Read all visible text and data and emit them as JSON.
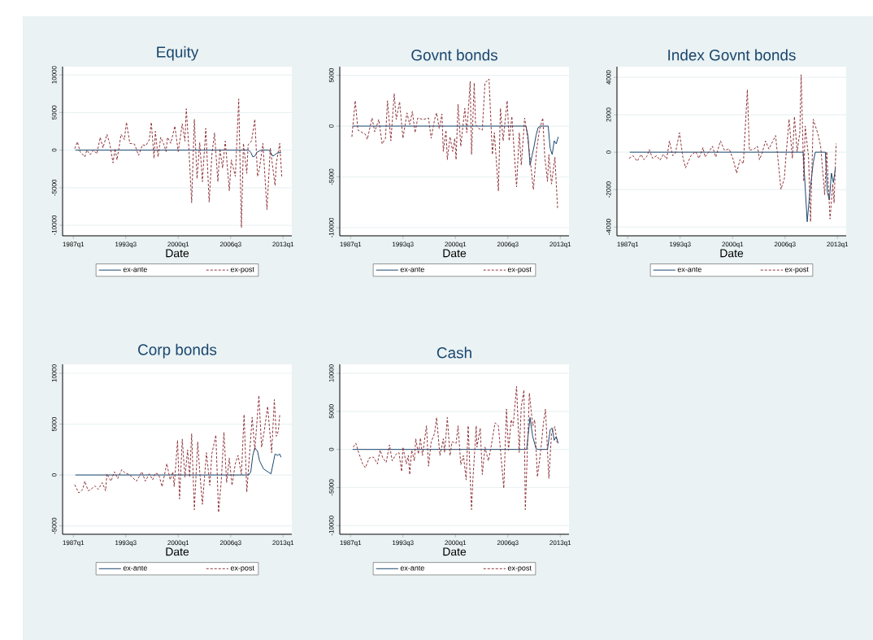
{
  "chart_data": [
    {
      "type": "line",
      "title": "Equity",
      "xlabel": "Date",
      "xlim": [
        "1985-09",
        "2014-02"
      ],
      "xticks": [
        {
          "value": "1987-01",
          "label": "1987q1"
        },
        {
          "value": "1993-07",
          "label": "1993q3"
        },
        {
          "value": "2000-01",
          "label": "2000q1"
        },
        {
          "value": "2006-07",
          "label": "2006q3"
        },
        {
          "value": "2013-01",
          "label": "2013q1"
        }
      ],
      "ylim": [
        -11400,
        11100
      ],
      "yticks": [
        -10000,
        -5000,
        0,
        5000,
        10000
      ],
      "grid": "y",
      "legend": "bottom",
      "series": [
        {
          "name": "ex-ante",
          "color": "#1a476f",
          "line_style": "solid",
          "x": [
            "1987-04",
            "2008-10",
            "2009-01",
            "2009-04",
            "2009-07",
            "2009-10",
            "2010-04",
            "2011-04",
            "2011-10",
            "2012-01",
            "2012-04",
            "2012-10"
          ],
          "values": [
            0,
            0,
            -300,
            -900,
            -800,
            -300,
            0,
            0,
            -800,
            -600,
            -400,
            -300
          ]
        },
        {
          "name": "ex-post",
          "color": "#90353b",
          "line_style": "dashed",
          "x": [
            "1987-03",
            "1987-07",
            "1987-11",
            "1988-06",
            "1988-09",
            "1989-02",
            "1989-07",
            "1989-12",
            "1990-05",
            "1990-09",
            "1991-03",
            "1991-07",
            "1991-12",
            "1992-03",
            "1992-06",
            "1992-12",
            "1993-05",
            "1993-08",
            "1994-01",
            "1994-08",
            "1995-02",
            "1995-08",
            "1996-01",
            "1996-06",
            "1996-09",
            "1997-01",
            "1997-03",
            "1997-07",
            "1997-11",
            "1998-03",
            "1998-07",
            "1998-09",
            "1999-02",
            "1999-08",
            "2000-01",
            "2000-07",
            "2000-11",
            "2001-01",
            "2001-05",
            "2001-09",
            "2002-01",
            "2002-05",
            "2002-09",
            "2003-01",
            "2003-06",
            "2003-11",
            "2004-03",
            "2004-07",
            "2004-12",
            "2005-03",
            "2005-07",
            "2005-11",
            "2006-05",
            "2006-08",
            "2007-02",
            "2007-07",
            "2007-11",
            "2008-02",
            "2008-07",
            "2008-09",
            "2009-02",
            "2009-07",
            "2009-11",
            "2010-02",
            "2010-07",
            "2011-01",
            "2011-06",
            "2012-01",
            "2012-03",
            "2012-08",
            "2012-11"
          ],
          "values": [
            200,
            1100,
            -200,
            -900,
            0,
            -600,
            0,
            -500,
            1700,
            300,
            2100,
            900,
            -1700,
            200,
            -1300,
            2100,
            1400,
            3700,
            900,
            800,
            -700,
            700,
            600,
            1400,
            3700,
            -1100,
            2500,
            -900,
            1700,
            900,
            -200,
            1700,
            900,
            3200,
            -200,
            3500,
            1200,
            5500,
            0,
            -7000,
            4100,
            -3800,
            1000,
            -4200,
            2900,
            -6900,
            -700,
            2300,
            -4200,
            200,
            -2400,
            1200,
            -5400,
            -1300,
            -3500,
            6800,
            -10300,
            900,
            -3100,
            700,
            1200,
            4100,
            -3500,
            -2400,
            900,
            -7900,
            300,
            -4700,
            -1700,
            900,
            -3500
          ]
        }
      ]
    },
    {
      "type": "line",
      "title": "Govnt bonds",
      "xlabel": "Date",
      "xlim": [
        "1985-09",
        "2014-02"
      ],
      "xticks": [
        {
          "value": "1987-01",
          "label": "1987q1"
        },
        {
          "value": "1993-07",
          "label": "1993q3"
        },
        {
          "value": "2000-01",
          "label": "2000q1"
        },
        {
          "value": "2006-07",
          "label": "2006q3"
        },
        {
          "value": "2013-01",
          "label": "2013q1"
        }
      ],
      "ylim": [
        -10800,
        5850
      ],
      "yticks": [
        -10000,
        -5000,
        0,
        5000
      ],
      "grid": "y",
      "legend": "bottom",
      "series": [
        {
          "name": "ex-ante",
          "color": "#1a476f",
          "line_style": "solid",
          "x": [
            "1987-04",
            "2008-10",
            "2009-01",
            "2009-04",
            "2009-07",
            "2009-10",
            "2010-01",
            "2010-04",
            "2010-07",
            "2011-07",
            "2011-10",
            "2012-01",
            "2012-04",
            "2012-07",
            "2012-10"
          ],
          "values": [
            0,
            0,
            -1000,
            -3850,
            -2900,
            -2000,
            -900,
            -150,
            0,
            0,
            -2200,
            -2800,
            -1450,
            -1750,
            -1050
          ]
        },
        {
          "name": "ex-post",
          "color": "#90353b",
          "line_style": "dashed",
          "x": [
            "1987-03",
            "1987-08",
            "1987-12",
            "1988-11",
            "1989-02",
            "1989-09",
            "1990-01",
            "1990-07",
            "1990-12",
            "1991-05",
            "1991-08",
            "1992-01",
            "1992-06",
            "1992-09",
            "1993-02",
            "1993-07",
            "1994-01",
            "1994-05",
            "1994-09",
            "1995-01",
            "1995-05",
            "1996-01",
            "1996-09",
            "1997-01",
            "1997-06",
            "1997-09",
            "1998-01",
            "1998-05",
            "1998-07",
            "1998-11",
            "1999-01",
            "1999-05",
            "1999-09",
            "1999-12",
            "2000-02",
            "2000-05",
            "2000-09",
            "2001-03",
            "2001-06",
            "2001-11",
            "2002-01",
            "2002-05",
            "2002-07",
            "2002-12",
            "2003-05",
            "2003-09",
            "2004-03",
            "2004-08",
            "2004-11",
            "2005-05",
            "2005-08",
            "2005-12",
            "2006-06",
            "2006-09",
            "2007-01",
            "2007-08",
            "2007-12",
            "2008-03",
            "2008-08",
            "2008-12",
            "2009-03",
            "2009-09",
            "2010-02",
            "2010-06",
            "2010-11",
            "2011-02",
            "2011-06",
            "2011-08",
            "2011-12",
            "2012-05",
            "2012-09"
          ],
          "values": [
            -1050,
            2500,
            -400,
            -800,
            -1300,
            800,
            -550,
            650,
            -1750,
            -1200,
            2500,
            -1450,
            3200,
            650,
            2400,
            -1200,
            1300,
            150,
            1450,
            -650,
            800,
            650,
            800,
            -1200,
            650,
            1300,
            -250,
            1200,
            -2500,
            -400,
            -3300,
            -1050,
            -2500,
            -1200,
            -3300,
            2150,
            -2000,
            1750,
            -650,
            4400,
            -2800,
            4250,
            150,
            -250,
            -400,
            4250,
            4650,
            -2800,
            -650,
            -6400,
            1750,
            -1450,
            2500,
            -1450,
            950,
            -6000,
            -650,
            -3850,
            800,
            -950,
            -2500,
            -6250,
            -2250,
            -400,
            800,
            -3050,
            -5450,
            -2800,
            -5700,
            -3050,
            -8100
          ]
        }
      ]
    },
    {
      "type": "line",
      "title": "Index Govnt bonds",
      "xlabel": "Date",
      "xlim": [
        "1985-09",
        "2014-02"
      ],
      "xticks": [
        {
          "value": "1987-01",
          "label": "1987q1"
        },
        {
          "value": "1993-07",
          "label": "1993q3"
        },
        {
          "value": "2000-01",
          "label": "2000q1"
        },
        {
          "value": "2006-07",
          "label": "2006q3"
        },
        {
          "value": "2013-01",
          "label": "2013q1"
        }
      ],
      "ylim": [
        -4470,
        4570
      ],
      "yticks": [
        -4000,
        -2000,
        0,
        2000,
        4000
      ],
      "grid": "y",
      "legend": "bottom",
      "series": [
        {
          "name": "ex-ante",
          "color": "#1a476f",
          "line_style": "solid",
          "x": [
            "1987-04",
            "2008-10",
            "2009-04",
            "2009-08",
            "2010-01",
            "2010-04",
            "2011-07",
            "2011-10",
            "2012-01",
            "2012-04",
            "2012-07",
            "2012-10"
          ],
          "values": [
            0,
            0,
            -3720,
            -2130,
            -550,
            0,
            0,
            -2130,
            -2560,
            -1120,
            -1630,
            -840
          ]
        },
        {
          "name": "ex-post",
          "color": "#90353b",
          "line_style": "dashed",
          "x": [
            "1987-03",
            "1987-09",
            "1988-03",
            "1988-09",
            "1989-01",
            "1989-06",
            "1989-09",
            "1990-02",
            "1990-08",
            "1991-01",
            "1991-06",
            "1991-11",
            "1992-03",
            "1992-08",
            "1992-12",
            "1993-06",
            "1993-11",
            "1994-03",
            "1994-11",
            "1995-06",
            "1995-11",
            "1996-05",
            "1996-08",
            "1997-02",
            "1997-07",
            "1997-12",
            "1998-07",
            "1999-01",
            "1999-08",
            "2000-02",
            "2000-07",
            "2000-12",
            "2001-05",
            "2001-11",
            "2002-02",
            "2002-09",
            "2003-02",
            "2003-05",
            "2003-09",
            "2004-02",
            "2004-07",
            "2005-05",
            "2005-08",
            "2006-01",
            "2006-06",
            "2006-08",
            "2007-01",
            "2007-06",
            "2007-09",
            "2008-01",
            "2008-05",
            "2008-07",
            "2008-11",
            "2009-01",
            "2009-06",
            "2009-09",
            "2010-01",
            "2010-08",
            "2010-12",
            "2011-06",
            "2011-09",
            "2012-02",
            "2012-06",
            "2012-08",
            "2012-11"
          ],
          "values": [
            -330,
            -190,
            -480,
            -120,
            -400,
            -190,
            140,
            -330,
            -190,
            -430,
            -120,
            -370,
            600,
            -190,
            -40,
            1040,
            -260,
            -840,
            -190,
            30,
            -330,
            240,
            -260,
            30,
            320,
            -260,
            600,
            100,
            170,
            -400,
            -1120,
            -400,
            -620,
            3340,
            100,
            170,
            320,
            -400,
            -40,
            600,
            170,
            890,
            -190,
            -1990,
            -1410,
            -400,
            1760,
            -330,
            1900,
            30,
            1040,
            4140,
            -1560,
            1400,
            -260,
            -3720,
            1760,
            970,
            320,
            -2280,
            30,
            -3570,
            -1700,
            -2710,
            460
          ]
        }
      ]
    },
    {
      "type": "line",
      "title": "Corp bonds",
      "xlabel": "Date",
      "xlim": [
        "1985-09",
        "2014-02"
      ],
      "xticks": [
        {
          "value": "1987-01",
          "label": "1987q1"
        },
        {
          "value": "1993-07",
          "label": "1993q3"
        },
        {
          "value": "2000-01",
          "label": "2000q1"
        },
        {
          "value": "2006-07",
          "label": "2006q3"
        },
        {
          "value": "2013-01",
          "label": "2013q1"
        }
      ],
      "ylim": [
        -5830,
        10880
      ],
      "yticks": [
        -5000,
        0,
        5000,
        10000
      ],
      "grid": "y",
      "legend": "bottom",
      "series": [
        {
          "name": "ex-ante",
          "color": "#1a476f",
          "line_style": "solid",
          "x": [
            "1987-04",
            "2008-10",
            "2009-01",
            "2009-04",
            "2009-07",
            "2009-11",
            "2010-02",
            "2010-08",
            "2011-07",
            "2011-11",
            "2012-01",
            "2012-05",
            "2012-08",
            "2012-10"
          ],
          "values": [
            0,
            0,
            320,
            1930,
            2670,
            2330,
            1390,
            590,
            110,
            1390,
            2060,
            1930,
            2060,
            1740
          ]
        },
        {
          "name": "ex-post",
          "color": "#90353b",
          "line_style": "dashed",
          "x": [
            "1987-03",
            "1987-09",
            "1988-03",
            "1988-06",
            "1988-11",
            "1989-03",
            "1989-09",
            "1990-02",
            "1990-08",
            "1991-01",
            "1991-03",
            "1991-09",
            "1992-02",
            "1992-07",
            "1993-01",
            "1993-06",
            "1993-12",
            "1994-11",
            "1995-07",
            "1995-12",
            "1996-06",
            "1996-11",
            "1997-03",
            "1997-08",
            "1998-01",
            "1998-08",
            "1999-01",
            "1999-05",
            "1999-07",
            "1999-12",
            "2000-03",
            "2000-07",
            "2000-11",
            "2001-03",
            "2001-06",
            "2001-09",
            "2002-01",
            "2002-06",
            "2002-09",
            "2003-01",
            "2003-07",
            "2003-12",
            "2004-03",
            "2004-09",
            "2005-01",
            "2005-05",
            "2005-09",
            "2006-01",
            "2006-05",
            "2006-09",
            "2007-02",
            "2007-06",
            "2007-11",
            "2008-03",
            "2008-07",
            "2008-11",
            "2009-03",
            "2009-07",
            "2010-01",
            "2010-05",
            "2010-09",
            "2011-02",
            "2011-08",
            "2011-12",
            "2012-03",
            "2012-06",
            "2012-08"
          ],
          "values": [
            -960,
            -1760,
            -1420,
            -610,
            -1550,
            -1420,
            -1070,
            -1420,
            -750,
            -1550,
            110,
            -610,
            320,
            -350,
            530,
            190,
            50,
            -610,
            320,
            -610,
            110,
            -480,
            190,
            50,
            -1150,
            1120,
            -480,
            320,
            -1150,
            3400,
            -2350,
            3530,
            -210,
            2460,
            -210,
            4060,
            -3420,
            3260,
            320,
            -2890,
            2190,
            -1020,
            2060,
            3930,
            -3690,
            -610,
            4200,
            -750,
            1660,
            -1020,
            1120,
            1930,
            50,
            5940,
            -1680,
            1930,
            5670,
            2460,
            7810,
            2730,
            4330,
            6740,
            2190,
            7410,
            3800,
            4330,
            5940
          ]
        }
      ]
    },
    {
      "type": "line",
      "title": "Cash",
      "xlabel": "Date",
      "xlim": [
        "1985-09",
        "2014-02"
      ],
      "xticks": [
        {
          "value": "1987-01",
          "label": "1987q1"
        },
        {
          "value": "1993-07",
          "label": "1993q3"
        },
        {
          "value": "2000-01",
          "label": "2000q1"
        },
        {
          "value": "2006-07",
          "label": "2006q3"
        },
        {
          "value": "2013-01",
          "label": "2013q1"
        }
      ],
      "ylim": [
        -11140,
        11180
      ],
      "yticks": [
        -10000,
        -5000,
        0,
        5000,
        10000
      ],
      "grid": "y",
      "legend": "bottom",
      "series": [
        {
          "name": "ex-ante",
          "color": "#1a476f",
          "line_style": "solid",
          "x": [
            "1987-04",
            "2008-11",
            "2009-04",
            "2009-08",
            "2010-01",
            "2010-04",
            "2011-06",
            "2011-10",
            "2012-01",
            "2012-04",
            "2012-07",
            "2012-10"
          ],
          "values": [
            0,
            0,
            4200,
            1700,
            100,
            0,
            0,
            2600,
            2800,
            1200,
            1700,
            800
          ]
        },
        {
          "name": "ex-post",
          "color": "#90353b",
          "line_style": "dashed",
          "x": [
            "1987-05",
            "1987-09",
            "1988-01",
            "1988-07",
            "1988-11",
            "1989-05",
            "1989-11",
            "1990-05",
            "1990-09",
            "1991-01",
            "1991-06",
            "1991-11",
            "1992-03",
            "1992-09",
            "1993-01",
            "1993-05",
            "1993-07",
            "1993-12",
            "1994-03",
            "1994-05",
            "1994-08",
            "1994-12",
            "1995-02",
            "1995-06",
            "1995-09",
            "1995-12",
            "1996-06",
            "1996-09",
            "1997-01",
            "1997-06",
            "1997-09",
            "1998-02",
            "1998-07",
            "1998-09",
            "1999-01",
            "1999-05",
            "1999-08",
            "2000-02",
            "2000-05",
            "2000-09",
            "2001-01",
            "2001-05",
            "2001-08",
            "2002-01",
            "2002-03",
            "2002-08",
            "2002-09",
            "2003-02",
            "2003-05",
            "2003-09",
            "2004-02",
            "2004-06",
            "2004-12",
            "2005-05",
            "2005-09",
            "2006-01",
            "2006-05",
            "2006-08",
            "2006-12",
            "2007-03",
            "2007-08",
            "2007-12",
            "2008-03",
            "2008-07",
            "2008-09",
            "2009-01",
            "2009-03",
            "2009-08",
            "2009-11",
            "2010-03",
            "2010-08",
            "2010-12",
            "2011-03",
            "2011-08",
            "2011-12",
            "2012-05",
            "2012-08",
            "2012-10"
          ],
          "values": [
            300,
            800,
            -400,
            -1900,
            -2400,
            -1100,
            -1000,
            -1900,
            -100,
            -1100,
            -1700,
            600,
            -1500,
            -600,
            -400,
            -2900,
            300,
            -1900,
            -800,
            -3300,
            -100,
            -1500,
            1400,
            -600,
            1500,
            -800,
            3100,
            -2200,
            1000,
            2100,
            4200,
            -800,
            1400,
            -400,
            4200,
            -800,
            1000,
            800,
            3100,
            -2000,
            -800,
            -4000,
            3100,
            -7900,
            -4000,
            3100,
            300,
            2800,
            -3300,
            300,
            -1500,
            300,
            3500,
            3100,
            -1100,
            -5100,
            5300,
            -100,
            3900,
            3100,
            8300,
            -400,
            5600,
            7800,
            -7900,
            2100,
            7400,
            3100,
            3900,
            -3600,
            -100,
            3500,
            5300,
            -3800,
            2100,
            3000,
            1000,
            800
          ]
        }
      ]
    }
  ]
}
